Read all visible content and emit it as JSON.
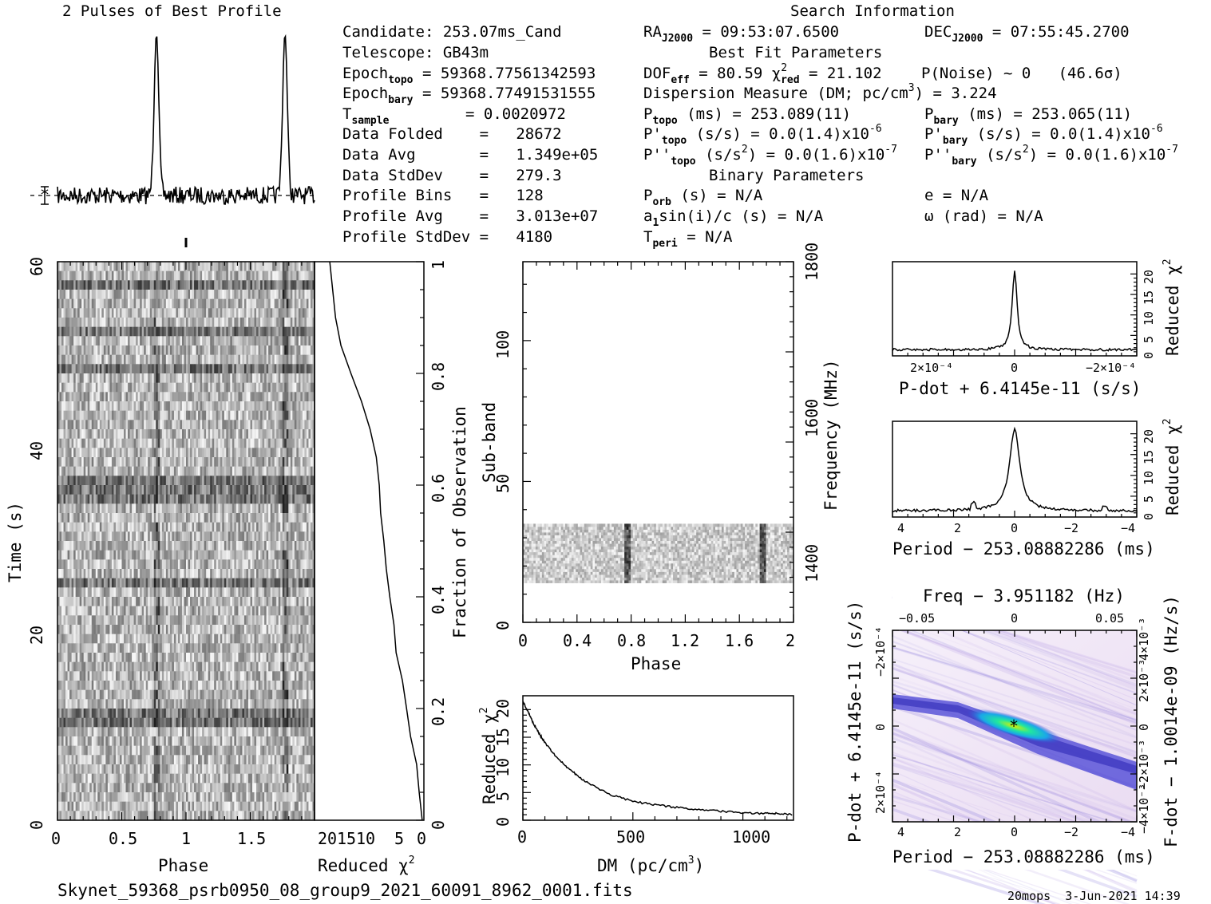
{
  "header": {
    "profile_title": "2 Pulses of Best Profile",
    "search_title": "Search Information",
    "best_fit_title": "Best Fit Parameters",
    "binary_title": "Binary Parameters",
    "candidate": "Candidate:  253.07ms_Cand",
    "telescope": "Telescope:  GB43m",
    "epoch_topo_val": "= 59368.77561342593",
    "epoch_bary_val": "= 59368.77491531555",
    "tsample_val": "=   0.0020972",
    "data_folded": "Data Folded    =   28672",
    "data_avg": "Data Avg       =   1.349e+05",
    "data_stddev": "Data StdDev    =   279.3",
    "profile_bins": "Profile Bins   =   128",
    "profile_avg": "Profile Avg    =   3.013e+07",
    "profile_stddev": "Profile StdDev =   4180",
    "ra_val": "= 09:53:07.6500",
    "dec_val": "= 07:55:45.2700",
    "dof_val": "= 80.59",
    "chi_val": "= 21.102",
    "pnoise": "P(Noise) ~ 0   (46.6σ)",
    "dm_line": "Dispersion Measure (DM; pc/cm",
    "dm_val": ") = 3.224",
    "ptopo_val": "(ms) =  253.089(11)",
    "pbary_val": "(ms) =  253.065(11)",
    "pdtopo_val": "(s/s) = 0.0(1.4)x10",
    "pdbary_val": "(s/s) = 0.0(1.4)x10",
    "pddtopo_val": "(s/s",
    "pddtopo_val2": ") = 0.0(1.6)x10",
    "pddbary_val": "(s/s",
    "pddbary_val2": ") = 0.0(1.6)x10",
    "exp6": "-6",
    "exp7": "-7",
    "porb": "(s) = N/A",
    "ecc": "e = N/A",
    "asini": "a",
    "asini_rest": "sin(i)/c (s) = N/A",
    "omega": "ω (rad) = N/A",
    "tperi": "= N/A"
  },
  "footer": {
    "filename": "Skynet_59368_psrb0950_08_group9_2021_60091_8962_0001.fits",
    "stamp": "20mops  3-Jun-2021 14:39"
  },
  "axes": {
    "time_label": "Time (s)",
    "phase_label": "Phase",
    "reduced_chi2": "Reduced χ",
    "fraction_label": "Fraction of Observation",
    "subband_label": "Sub-band",
    "frequency_label": "Frequency (MHz)",
    "dm_label": "DM (pc/cm",
    "pdot_label": "P-dot + 6.4145e-11 (s/s)",
    "period_label": "Period − 253.08882286 (ms)",
    "freq_label": "Freq − 3.951182 (Hz)",
    "fdot_label": "F-dot − 1.0014e-09 (Hz/s)",
    "pdot_left_label": "P-dot + 6.4145e-11 (s/s)"
  },
  "chart_data": [
    {
      "type": "line",
      "name": "pulse-profile",
      "title": "2 Pulses of Best Profile",
      "x": "phase 0-2",
      "peaks_phase": [
        0.77,
        1.77
      ]
    },
    {
      "type": "heatmap",
      "name": "time-vs-phase",
      "xlabel": "Phase",
      "ylabel": "Time (s)",
      "xlim": [
        0,
        2
      ],
      "ylim": [
        0,
        60
      ],
      "xticks": [
        "0",
        "0.5",
        "1",
        "1.5"
      ],
      "yticks": [
        "0",
        "20",
        "40",
        "60"
      ],
      "pulse_columns_phase": [
        0.77,
        1.77
      ]
    },
    {
      "type": "line",
      "name": "cumulative-reduced-chi2",
      "xlabel": "Reduced χ²",
      "ylabel": "Fraction of Observation",
      "xticks": [
        "20",
        "15",
        "10",
        "5",
        "0"
      ],
      "yticks": [
        "0",
        "0.2",
        "0.4",
        "0.6",
        "0.8",
        "1"
      ],
      "fraction": [
        0.0,
        0.05,
        0.1,
        0.15,
        0.2,
        0.25,
        0.3,
        0.35,
        0.4,
        0.45,
        0.5,
        0.55,
        0.6,
        0.65,
        0.7,
        0.75,
        0.8,
        0.85,
        0.9,
        0.95,
        1.0
      ],
      "chi2": [
        0.5,
        0.8,
        1.5,
        2.5,
        3.5,
        4.5,
        5.5,
        6.0,
        7.0,
        7.5,
        8.0,
        8.5,
        8.8,
        9.5,
        11.0,
        12.5,
        14.5,
        16.5,
        18.0,
        18.5,
        19.0
      ]
    },
    {
      "type": "heatmap",
      "name": "subband-vs-phase",
      "xlabel": "Phase",
      "ylabel": "Sub-band",
      "y2label": "Frequency (MHz)",
      "xlim": [
        0,
        2
      ],
      "ylim": [
        0,
        128
      ],
      "xticks": [
        "0",
        "0.4",
        "0.8",
        "1.2",
        "1.6",
        "2"
      ],
      "yticks": [
        "0",
        "50",
        "100"
      ],
      "y2ticks": [
        "1400",
        "1600",
        "1800"
      ],
      "filled_subbands": [
        14,
        35
      ],
      "pulse_columns_phase": [
        0.77,
        1.77
      ]
    },
    {
      "type": "line",
      "name": "dm-curve",
      "xlabel": "DM (pc/cm³)",
      "ylabel": "Reduced χ²",
      "xlim": [
        0,
        1230
      ],
      "ylim": [
        0,
        22.5
      ],
      "xticks": [
        "0",
        "500",
        "1000"
      ],
      "yticks": [
        "0",
        "5",
        "10",
        "15",
        "20"
      ],
      "x": [
        0,
        25,
        50,
        75,
        100,
        150,
        200,
        250,
        300,
        400,
        500,
        600,
        700,
        800,
        900,
        1000,
        1100,
        1150,
        1230
      ],
      "y": [
        21.5,
        19.5,
        17.3,
        15.6,
        14.0,
        11.5,
        9.6,
        8.0,
        6.6,
        4.6,
        3.4,
        2.8,
        2.3,
        1.9,
        1.6,
        1.4,
        1.2,
        1.2,
        1.0
      ]
    },
    {
      "type": "line",
      "name": "pdot-curve",
      "xlabel": "P-dot + 6.4145e-11 (s/s)",
      "ylabel": "Reduced χ²",
      "xticks": [
        "2×10⁻⁴",
        "0",
        "−2×10⁻⁴"
      ],
      "yticks": [
        "0",
        "5",
        "10",
        "15",
        "20"
      ],
      "xlim": [
        0.00027,
        -0.00027
      ],
      "ylim": [
        0,
        23
      ],
      "peak_x": 0,
      "peak_y": 21,
      "baseline_y": 1.5
    },
    {
      "type": "line",
      "name": "period-curve",
      "xlabel": "Period − 253.08882286 (ms)",
      "ylabel": "Reduced χ²",
      "xticks": [
        "4",
        "2",
        "0",
        "−2",
        "−4"
      ],
      "yticks": [
        "0",
        "5",
        "10",
        "15",
        "20"
      ],
      "xlim": [
        4.3,
        -4.3
      ],
      "ylim": [
        0,
        23
      ],
      "peak_x": 0,
      "peak_y": 21,
      "baseline_y": 1.5
    },
    {
      "type": "heatmap",
      "name": "period-pdot-plane",
      "xlabel": "Period − 253.08882286 (ms)",
      "ylabel": "P-dot + 6.4145e-11 (s/s)",
      "x2label": "Freq − 3.951182 (Hz)",
      "y2label": "F-dot − 1.0014e-09 (Hz/s)",
      "xticks": [
        "4",
        "2",
        "0",
        "−2",
        "−4"
      ],
      "yticks": [
        "−2×10⁻⁴",
        "0",
        "2×10⁻⁴"
      ],
      "x2ticks": [
        "−0.05",
        "0",
        "0.05"
      ],
      "y2ticks": [
        "4×10⁻³",
        "2×10⁻³",
        "0",
        "−2×10⁻³",
        "−4×10⁻³"
      ],
      "best_fit": [
        0,
        0
      ],
      "colors": {
        "low": "#f4e8f7",
        "mid": "#6a5ad6",
        "high": "#1fe39a",
        "peak": "#c8f000"
      }
    }
  ]
}
